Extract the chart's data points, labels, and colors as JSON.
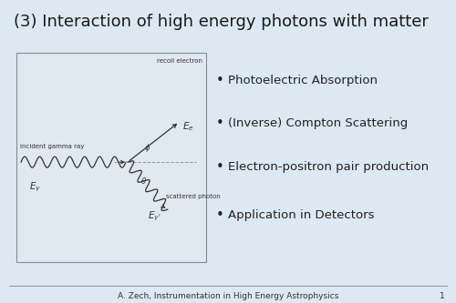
{
  "title": "(3) Interaction of high energy photons with matter",
  "title_bg_color": "#b8d9f0",
  "slide_bg_color": "#dce8f2",
  "body_bg_color": "#e8eff5",
  "title_fontsize": 13,
  "bullet_items": [
    "Photoelectric Absorption",
    "(Inverse) Compton Scattering",
    "Electron-positron pair production",
    "Application in Detectors"
  ],
  "bullet_fontsize": 9.5,
  "footer_text": "A. Zech, Instrumentation in High Energy Astrophysics",
  "footer_page": "1",
  "footer_fontsize": 6.5,
  "diagram_box_facecolor": "#e0e8f0",
  "diagram_box_edgecolor": "#888899",
  "diagram_line_color": "#333333",
  "diagram_text_color": "#333333",
  "diagram_text_fontsize": 5.0,
  "diagram_label_fontsize": 7.5
}
